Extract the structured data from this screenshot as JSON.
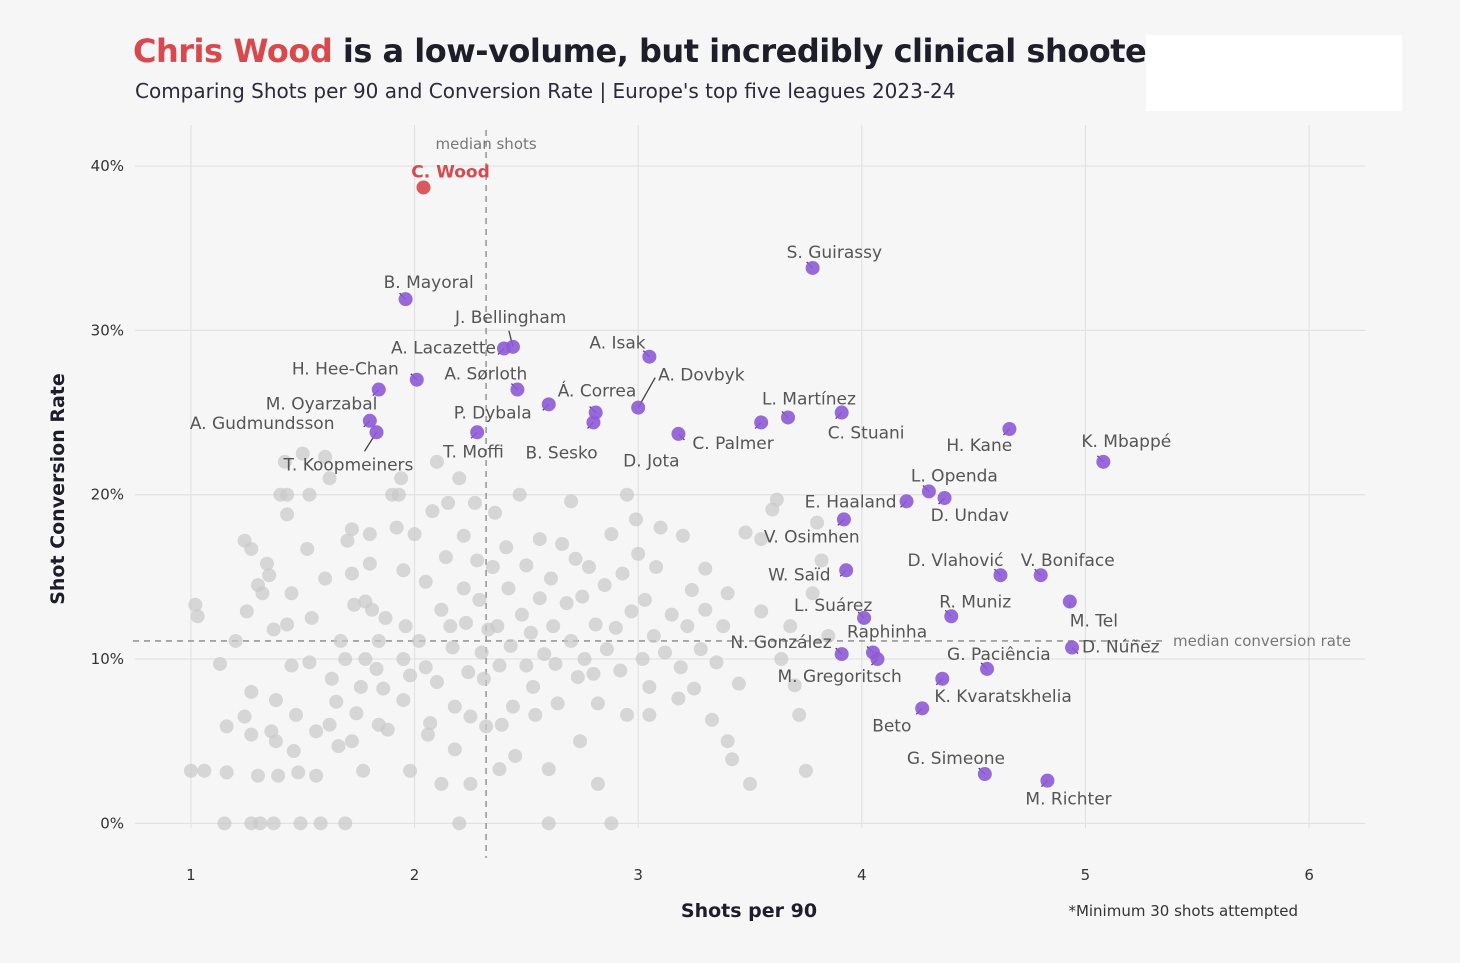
{
  "header": {
    "title_highlight": "Chris Wood",
    "title_rest": " is a low-volume, but incredibly clinical shooter",
    "subtitle": "Comparing Shots per 90 and Conversion Rate | Europe's top five leagues 2023-24"
  },
  "colors": {
    "highlight": "#d8484d",
    "labelled": "#8e5ad6",
    "background_points": "#c9c9c9"
  },
  "chart_data": {
    "type": "scatter",
    "xlabel": "Shots per 90",
    "ylabel": "Shot Conversion Rate",
    "xlim": [
      0.75,
      6.25
    ],
    "ylim": [
      -1.5,
      42.5
    ],
    "xticks": [
      1,
      2,
      3,
      4,
      5,
      6
    ],
    "xtick_labels": [
      "1",
      "2",
      "3",
      "4",
      "5",
      "6"
    ],
    "yticks": [
      0,
      10,
      20,
      30,
      40
    ],
    "ytick_labels": [
      "0%",
      "10%",
      "20%",
      "30%",
      "40%"
    ],
    "grid": true,
    "median_shots": 2.32,
    "median_shots_label": "median shots",
    "median_conversion": 11.1,
    "median_conversion_label": "median conversion rate",
    "footnote": "*Minimum 30 shots attempted",
    "highlight": {
      "name": "C. Wood",
      "x": 2.04,
      "y": 38.7
    },
    "labelled_points": [
      {
        "name": "S. Guirassy",
        "x": 3.78,
        "y": 33.8
      },
      {
        "name": "B. Mayoral",
        "x": 1.96,
        "y": 31.9
      },
      {
        "name": "J. Bellingham",
        "x": 2.44,
        "y": 29.0
      },
      {
        "name": "A. Lacazette",
        "x": 2.4,
        "y": 28.9
      },
      {
        "name": "A. Isak",
        "x": 3.05,
        "y": 28.4
      },
      {
        "name": "H. Hee-Chan",
        "x": 2.01,
        "y": 27.0
      },
      {
        "name": "A. Sørloth",
        "x": 2.46,
        "y": 26.4
      },
      {
        "name": "M. Oyarzabal",
        "x": 1.84,
        "y": 26.4
      },
      {
        "name": "A. Dovbyk",
        "x": 3.0,
        "y": 25.3
      },
      {
        "name": "Á. Correa",
        "x": 2.81,
        "y": 25.0
      },
      {
        "name": "P. Dybala",
        "x": 2.6,
        "y": 25.5
      },
      {
        "name": "B. Sesko",
        "x": 2.8,
        "y": 24.4
      },
      {
        "name": "L. Martínez",
        "x": 3.67,
        "y": 24.7
      },
      {
        "name": "C. Stuani",
        "x": 3.91,
        "y": 25.0
      },
      {
        "name": "H. Kane",
        "x": 4.66,
        "y": 24.0
      },
      {
        "name": "A. Gudmundsson",
        "x": 1.8,
        "y": 24.5
      },
      {
        "name": "T. Koopmeiners",
        "x": 1.83,
        "y": 23.8
      },
      {
        "name": "T. Moffi",
        "x": 2.28,
        "y": 23.8
      },
      {
        "name": "C. Palmer",
        "x": 3.18,
        "y": 23.7
      },
      {
        "name": "D. Jota",
        "x": 3.55,
        "y": 24.4
      },
      {
        "name": "K. Mbappé",
        "x": 5.08,
        "y": 22.0
      },
      {
        "name": "L. Openda",
        "x": 4.3,
        "y": 20.2
      },
      {
        "name": "E. Haaland",
        "x": 4.2,
        "y": 19.6
      },
      {
        "name": "D. Undav",
        "x": 4.37,
        "y": 19.8
      },
      {
        "name": "V. Osimhen",
        "x": 3.92,
        "y": 18.5
      },
      {
        "name": "D. Vlahović",
        "x": 4.62,
        "y": 15.1
      },
      {
        "name": "V. Boniface",
        "x": 4.8,
        "y": 15.1
      },
      {
        "name": "W. Saïd",
        "x": 3.93,
        "y": 15.4
      },
      {
        "name": "M. Tel",
        "x": 4.93,
        "y": 13.5
      },
      {
        "name": "R. Muniz",
        "x": 4.4,
        "y": 12.6
      },
      {
        "name": "L. Suárez",
        "x": 4.01,
        "y": 12.5
      },
      {
        "name": "Raphinha",
        "x": 4.05,
        "y": 10.4
      },
      {
        "name": "N. González",
        "x": 3.91,
        "y": 10.3
      },
      {
        "name": "D. Núñez",
        "x": 4.94,
        "y": 10.7
      },
      {
        "name": "G. Paciência",
        "x": 4.56,
        "y": 9.4
      },
      {
        "name": "M. Gregoritsch",
        "x": 4.07,
        "y": 10.0
      },
      {
        "name": "K. Kvaratskhelia",
        "x": 4.36,
        "y": 8.8
      },
      {
        "name": "Beto",
        "x": 4.27,
        "y": 7.0
      },
      {
        "name": "G. Simeone",
        "x": 4.55,
        "y": 3.0
      },
      {
        "name": "M. Richter",
        "x": 4.83,
        "y": 2.6
      }
    ],
    "background_points": [
      [
        1.02,
        13.3
      ],
      [
        1.03,
        12.6
      ],
      [
        1.0,
        3.2
      ],
      [
        1.06,
        3.2
      ],
      [
        1.13,
        9.7
      ],
      [
        1.16,
        5.9
      ],
      [
        1.16,
        3.1
      ],
      [
        1.15,
        0
      ],
      [
        1.2,
        11.1
      ],
      [
        1.24,
        17.2
      ],
      [
        1.27,
        16.7
      ],
      [
        1.25,
        12.9
      ],
      [
        1.27,
        8.0
      ],
      [
        1.24,
        6.5
      ],
      [
        1.27,
        5.4
      ],
      [
        1.3,
        14.5
      ],
      [
        1.32,
        14.0
      ],
      [
        1.3,
        2.9
      ],
      [
        1.27,
        0
      ],
      [
        1.31,
        0
      ],
      [
        1.34,
        15.8
      ],
      [
        1.35,
        15.1
      ],
      [
        1.37,
        11.8
      ],
      [
        1.38,
        7.5
      ],
      [
        1.36,
        5.6
      ],
      [
        1.38,
        5.0
      ],
      [
        1.39,
        2.9
      ],
      [
        1.37,
        0
      ],
      [
        1.4,
        20.0
      ],
      [
        1.43,
        20.0
      ],
      [
        1.43,
        18.8
      ],
      [
        1.42,
        22.0
      ],
      [
        1.43,
        12.1
      ],
      [
        1.45,
        14.0
      ],
      [
        1.45,
        9.6
      ],
      [
        1.47,
        6.6
      ],
      [
        1.46,
        4.4
      ],
      [
        1.48,
        3.1
      ],
      [
        1.49,
        0
      ],
      [
        1.5,
        22.5
      ],
      [
        1.53,
        20.0
      ],
      [
        1.52,
        16.7
      ],
      [
        1.53,
        9.8
      ],
      [
        1.54,
        12.5
      ],
      [
        1.56,
        5.6
      ],
      [
        1.56,
        2.9
      ],
      [
        1.58,
        0
      ],
      [
        1.6,
        22.3
      ],
      [
        1.62,
        21.0
      ],
      [
        1.6,
        14.9
      ],
      [
        1.63,
        8.8
      ],
      [
        1.62,
        6.0
      ],
      [
        1.65,
        7.4
      ],
      [
        1.67,
        11.1
      ],
      [
        1.69,
        10.0
      ],
      [
        1.66,
        4.7
      ],
      [
        1.69,
        0
      ],
      [
        1.7,
        17.2
      ],
      [
        1.72,
        17.9
      ],
      [
        1.72,
        15.2
      ],
      [
        1.73,
        13.3
      ],
      [
        1.72,
        5.0
      ],
      [
        1.74,
        6.7
      ],
      [
        1.76,
        8.3
      ],
      [
        1.78,
        10.0
      ],
      [
        1.78,
        13.5
      ],
      [
        1.77,
        3.2
      ],
      [
        1.8,
        17.6
      ],
      [
        1.8,
        15.8
      ],
      [
        1.81,
        13.0
      ],
      [
        1.83,
        9.4
      ],
      [
        1.84,
        11.1
      ],
      [
        1.86,
        8.2
      ],
      [
        1.84,
        6.0
      ],
      [
        1.87,
        12.5
      ],
      [
        1.88,
        5.7
      ],
      [
        1.9,
        20.0
      ],
      [
        1.93,
        20.0
      ],
      [
        1.92,
        18.0
      ],
      [
        1.94,
        21.0
      ],
      [
        1.95,
        15.4
      ],
      [
        1.96,
        12.0
      ],
      [
        1.95,
        10.0
      ],
      [
        1.98,
        9.0
      ],
      [
        1.95,
        7.5
      ],
      [
        1.98,
        3.2
      ],
      [
        2.0,
        17.6
      ],
      [
        2.02,
        11.1
      ],
      [
        2.05,
        14.7
      ],
      [
        2.05,
        9.5
      ],
      [
        2.07,
        6.1
      ],
      [
        2.06,
        5.4
      ],
      [
        2.08,
        19.0
      ],
      [
        2.1,
        22.0
      ],
      [
        2.12,
        13.0
      ],
      [
        2.1,
        8.6
      ],
      [
        2.12,
        2.4
      ],
      [
        2.14,
        16.2
      ],
      [
        2.15,
        19.5
      ],
      [
        2.16,
        12.0
      ],
      [
        2.17,
        10.7
      ],
      [
        2.18,
        7.1
      ],
      [
        2.18,
        4.5
      ],
      [
        2.2,
        21.0
      ],
      [
        2.22,
        17.5
      ],
      [
        2.22,
        14.3
      ],
      [
        2.23,
        12.2
      ],
      [
        2.24,
        9.2
      ],
      [
        2.25,
        6.5
      ],
      [
        2.2,
        0
      ],
      [
        2.25,
        2.4
      ],
      [
        2.27,
        19.5
      ],
      [
        2.28,
        16.0
      ],
      [
        2.29,
        13.6
      ],
      [
        2.3,
        10.4
      ],
      [
        2.31,
        8.8
      ],
      [
        2.32,
        5.9
      ],
      [
        2.33,
        11.8
      ],
      [
        2.35,
        15.6
      ],
      [
        2.36,
        18.9
      ],
      [
        2.37,
        12.0
      ],
      [
        2.38,
        9.6
      ],
      [
        2.39,
        6.0
      ],
      [
        2.38,
        3.3
      ],
      [
        2.41,
        16.8
      ],
      [
        2.42,
        14.3
      ],
      [
        2.43,
        10.8
      ],
      [
        2.44,
        7.1
      ],
      [
        2.45,
        4.1
      ],
      [
        2.47,
        20.0
      ],
      [
        2.48,
        12.7
      ],
      [
        2.5,
        9.6
      ],
      [
        2.5,
        15.7
      ],
      [
        2.52,
        11.6
      ],
      [
        2.53,
        8.3
      ],
      [
        2.54,
        6.6
      ],
      [
        2.56,
        17.3
      ],
      [
        2.56,
        13.7
      ],
      [
        2.58,
        10.3
      ],
      [
        2.6,
        3.3
      ],
      [
        2.6,
        0
      ],
      [
        2.61,
        14.9
      ],
      [
        2.62,
        12.0
      ],
      [
        2.63,
        9.7
      ],
      [
        2.64,
        7.3
      ],
      [
        2.66,
        17.0
      ],
      [
        2.68,
        13.4
      ],
      [
        2.7,
        11.1
      ],
      [
        2.7,
        19.6
      ],
      [
        2.72,
        16.1
      ],
      [
        2.73,
        8.9
      ],
      [
        2.74,
        5.0
      ],
      [
        2.75,
        13.8
      ],
      [
        2.76,
        10.0
      ],
      [
        2.78,
        15.6
      ],
      [
        2.8,
        9.1
      ],
      [
        2.81,
        12.1
      ],
      [
        2.82,
        7.3
      ],
      [
        2.82,
        2.4
      ],
      [
        2.85,
        14.5
      ],
      [
        2.86,
        10.6
      ],
      [
        2.88,
        17.6
      ],
      [
        2.88,
        0
      ],
      [
        2.9,
        11.9
      ],
      [
        2.92,
        9.3
      ],
      [
        2.93,
        15.2
      ],
      [
        2.95,
        20.0
      ],
      [
        2.95,
        6.6
      ],
      [
        2.97,
        12.9
      ],
      [
        2.99,
        18.5
      ],
      [
        3.0,
        16.4
      ],
      [
        3.02,
        10.0
      ],
      [
        3.03,
        13.6
      ],
      [
        3.05,
        8.3
      ],
      [
        3.05,
        6.6
      ],
      [
        3.07,
        11.4
      ],
      [
        3.08,
        15.6
      ],
      [
        3.1,
        18.0
      ],
      [
        3.12,
        10.4
      ],
      [
        3.15,
        12.7
      ],
      [
        3.18,
        7.6
      ],
      [
        3.19,
        9.5
      ],
      [
        3.2,
        17.5
      ],
      [
        3.22,
        12.0
      ],
      [
        3.24,
        14.2
      ],
      [
        3.25,
        8.2
      ],
      [
        3.28,
        10.6
      ],
      [
        3.3,
        13.0
      ],
      [
        3.3,
        15.5
      ],
      [
        3.33,
        6.3
      ],
      [
        3.35,
        9.8
      ],
      [
        3.38,
        12.0
      ],
      [
        3.4,
        5.0
      ],
      [
        3.4,
        14.0
      ],
      [
        3.42,
        3.9
      ],
      [
        3.45,
        8.5
      ],
      [
        3.48,
        17.7
      ],
      [
        3.5,
        2.4
      ],
      [
        3.55,
        12.9
      ],
      [
        3.55,
        17.3
      ],
      [
        3.6,
        19.1
      ],
      [
        3.62,
        19.7
      ],
      [
        3.64,
        10.0
      ],
      [
        3.68,
        12.0
      ],
      [
        3.7,
        8.4
      ],
      [
        3.72,
        6.6
      ],
      [
        3.75,
        3.2
      ],
      [
        3.78,
        14.0
      ],
      [
        3.8,
        18.3
      ],
      [
        3.82,
        16.0
      ],
      [
        3.85,
        11.4
      ]
    ]
  }
}
